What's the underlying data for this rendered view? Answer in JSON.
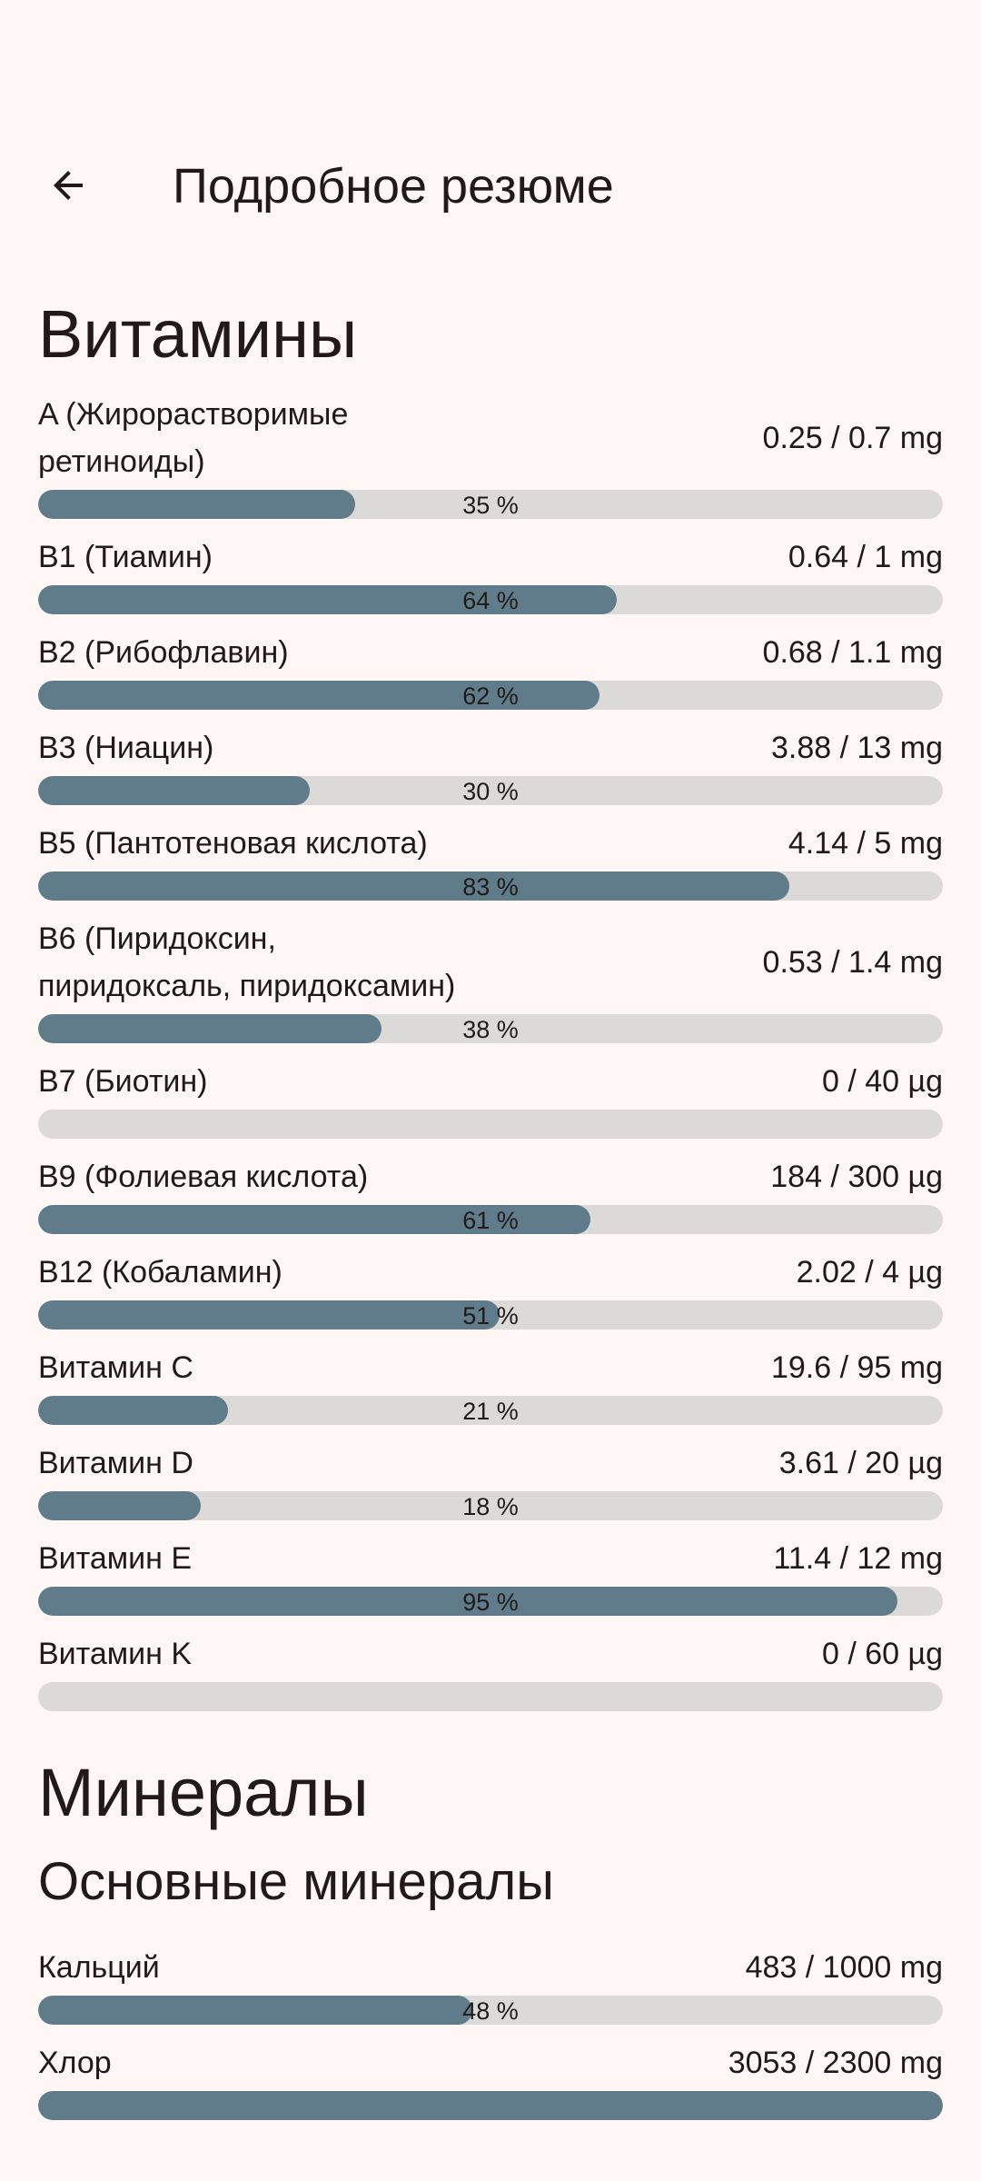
{
  "app_bar": {
    "title": "Подробное резюме",
    "back_icon": "arrow-back-icon"
  },
  "vitamins": {
    "title": "Витамины",
    "items": [
      {
        "name": "A (Жирорастворимые ретиноиды)",
        "value": "0.25 / 0.7 mg",
        "percent_label": "35 %",
        "fill": 0.35
      },
      {
        "name": "B1 (Тиамин)",
        "value": "0.64 / 1 mg",
        "percent_label": "64 %",
        "fill": 0.64
      },
      {
        "name": "B2 (Рибофлавин)",
        "value": "0.68 / 1.1 mg",
        "percent_label": "62 %",
        "fill": 0.62
      },
      {
        "name": "B3 (Ниацин)",
        "value": "3.88 / 13 mg",
        "percent_label": "30 %",
        "fill": 0.3
      },
      {
        "name": "B5 (Пантотеновая кислота)",
        "value": "4.14 / 5 mg",
        "percent_label": "83 %",
        "fill": 0.83
      },
      {
        "name": "B6 (Пиридоксин, пиридоксаль, пиридоксамин)",
        "value": "0.53 / 1.4 mg",
        "percent_label": "38 %",
        "fill": 0.38
      },
      {
        "name": "B7 (Биотин)",
        "value": "0 / 40 µg",
        "percent_label": "",
        "fill": 0
      },
      {
        "name": "B9 (Фолиевая кислота)",
        "value": "184 / 300 µg",
        "percent_label": "61 %",
        "fill": 0.61
      },
      {
        "name": "B12 (Кобаламин)",
        "value": "2.02 / 4 µg",
        "percent_label": "51 %",
        "fill": 0.51
      },
      {
        "name": "Витамин C",
        "value": "19.6 / 95 mg",
        "percent_label": "21 %",
        "fill": 0.21
      },
      {
        "name": "Витамин D",
        "value": "3.61 / 20 µg",
        "percent_label": "18 %",
        "fill": 0.18
      },
      {
        "name": "Витамин E",
        "value": "11.4 / 12 mg",
        "percent_label": "95 %",
        "fill": 0.95
      },
      {
        "name": "Витамин K",
        "value": "0 / 60 µg",
        "percent_label": "",
        "fill": 0
      }
    ]
  },
  "minerals": {
    "title": "Минералы",
    "subtitle": "Основные минералы",
    "items": [
      {
        "name": "Кальций",
        "value": "483 / 1000 mg",
        "percent_label": "48 %",
        "fill": 0.48
      },
      {
        "name": "Хлор",
        "value": "3053 / 2300 mg",
        "percent_label": "",
        "fill": 1.0
      }
    ]
  },
  "colors": {
    "background": "#FFF7F5",
    "bar_track": "#DCDAD9",
    "bar_fill": "#607C8B",
    "text": "#201A19"
  }
}
